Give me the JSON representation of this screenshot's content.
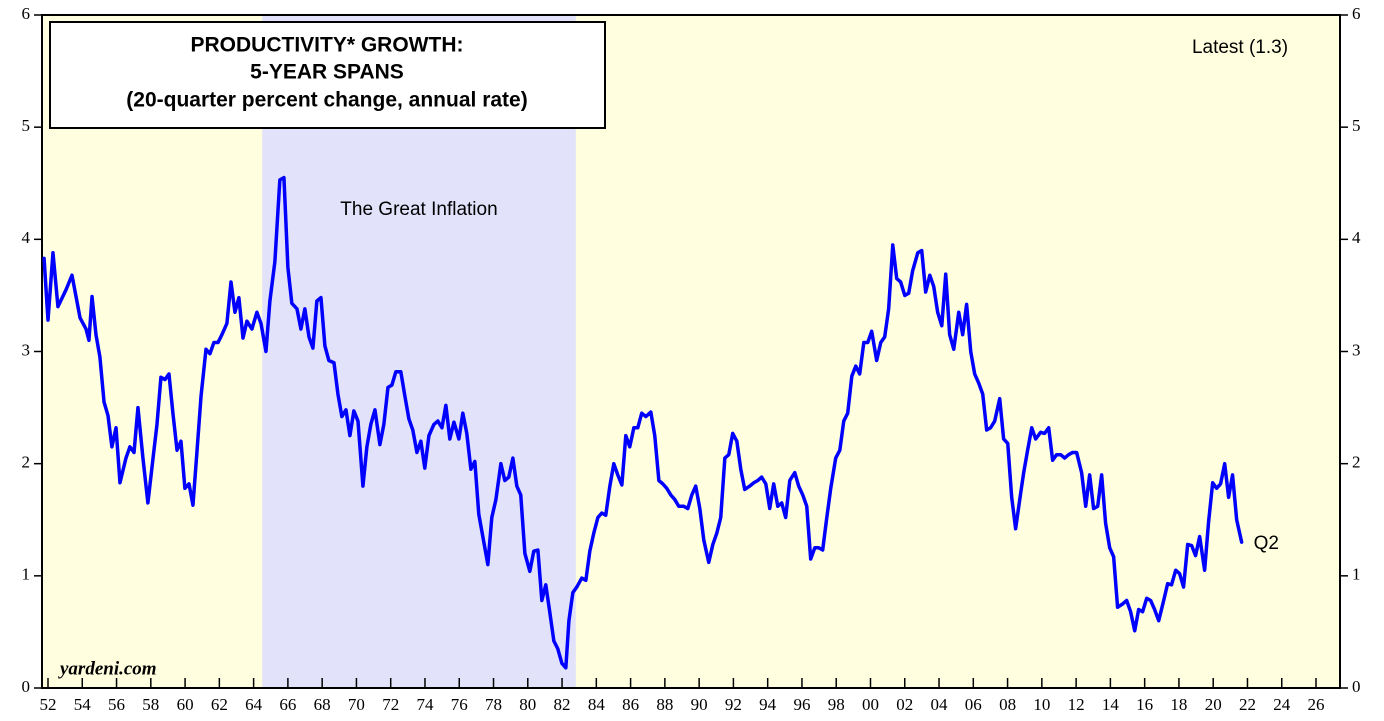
{
  "chart_data": {
    "type": "line",
    "title_lines": [
      "PRODUCTIVITY* GROWTH:",
      "5-YEAR SPANS",
      "(20-quarter percent change, annual rate)"
    ],
    "annotations": {
      "latest": "Latest (1.3)",
      "end_label": "Q2",
      "source": "yardeni.com"
    },
    "shaded_region": {
      "label": "The Great Inflation",
      "start": 1964.5,
      "end": 1982.8,
      "color": "#e2e2fa"
    },
    "background": "#ffffe0",
    "xlim": [
      1951.65,
      2027.4
    ],
    "ylim": [
      0,
      6
    ],
    "yticks": [
      0,
      1,
      2,
      3,
      4,
      5,
      6
    ],
    "xticks": [
      {
        "value": 1952,
        "label": "52"
      },
      {
        "value": 1954,
        "label": "54"
      },
      {
        "value": 1956,
        "label": "56"
      },
      {
        "value": 1958,
        "label": "58"
      },
      {
        "value": 1960,
        "label": "60"
      },
      {
        "value": 1962,
        "label": "62"
      },
      {
        "value": 1964,
        "label": "64"
      },
      {
        "value": 1966,
        "label": "66"
      },
      {
        "value": 1968,
        "label": "68"
      },
      {
        "value": 1970,
        "label": "70"
      },
      {
        "value": 1972,
        "label": "72"
      },
      {
        "value": 1974,
        "label": "74"
      },
      {
        "value": 1976,
        "label": "76"
      },
      {
        "value": 1978,
        "label": "78"
      },
      {
        "value": 1980,
        "label": "80"
      },
      {
        "value": 1982,
        "label": "82"
      },
      {
        "value": 1984,
        "label": "84"
      },
      {
        "value": 1986,
        "label": "86"
      },
      {
        "value": 1988,
        "label": "88"
      },
      {
        "value": 1990,
        "label": "90"
      },
      {
        "value": 1992,
        "label": "92"
      },
      {
        "value": 1994,
        "label": "94"
      },
      {
        "value": 1996,
        "label": "96"
      },
      {
        "value": 1998,
        "label": "98"
      },
      {
        "value": 2000,
        "label": "00"
      },
      {
        "value": 2002,
        "label": "02"
      },
      {
        "value": 2004,
        "label": "04"
      },
      {
        "value": 2006,
        "label": "06"
      },
      {
        "value": 2008,
        "label": "08"
      },
      {
        "value": 2010,
        "label": "10"
      },
      {
        "value": 2012,
        "label": "12"
      },
      {
        "value": 2014,
        "label": "14"
      },
      {
        "value": 2016,
        "label": "16"
      },
      {
        "value": 2018,
        "label": "18"
      },
      {
        "value": 2020,
        "label": "20"
      },
      {
        "value": 2022,
        "label": "22"
      },
      {
        "value": 2024,
        "label": "24"
      },
      {
        "value": 2026,
        "label": "26"
      }
    ],
    "x": [
      1951.77,
      1952.0,
      1952.29,
      1952.58,
      1953.05,
      1953.4,
      1953.87,
      1954.22,
      1954.39,
      1954.57,
      1954.8,
      1955.03,
      1955.27,
      1955.5,
      1955.73,
      1955.97,
      1956.2,
      1956.55,
      1956.78,
      1957.02,
      1957.25,
      1957.54,
      1957.83,
      1958.13,
      1958.36,
      1958.59,
      1958.83,
      1959.06,
      1959.29,
      1959.53,
      1959.76,
      1959.99,
      1960.23,
      1960.46,
      1960.69,
      1960.93,
      1961.22,
      1961.45,
      1961.68,
      1961.92,
      1962.15,
      1962.44,
      1962.68,
      1962.91,
      1963.14,
      1963.38,
      1963.61,
      1963.9,
      1964.19,
      1964.43,
      1964.72,
      1964.95,
      1965.24,
      1965.53,
      1965.77,
      1966.0,
      1966.23,
      1966.53,
      1966.76,
      1966.99,
      1967.23,
      1967.46,
      1967.69,
      1967.93,
      1968.16,
      1968.39,
      1968.69,
      1968.92,
      1969.15,
      1969.39,
      1969.62,
      1969.85,
      1970.09,
      1970.38,
      1970.61,
      1970.84,
      1971.08,
      1971.37,
      1971.6,
      1971.84,
      1972.07,
      1972.3,
      1972.59,
      1972.83,
      1973.06,
      1973.29,
      1973.53,
      1973.76,
      1973.99,
      1974.23,
      1974.52,
      1974.75,
      1974.99,
      1975.22,
      1975.45,
      1975.69,
      1975.98,
      1976.21,
      1976.44,
      1976.68,
      1976.91,
      1977.14,
      1977.67,
      1977.9,
      1978.14,
      1978.43,
      1978.66,
      1978.89,
      1979.13,
      1979.36,
      1979.59,
      1979.83,
      1980.12,
      1980.35,
      1980.59,
      1980.82,
      1981.05,
      1981.29,
      1981.52,
      1981.75,
      1981.99,
      1982.22,
      1982.4,
      1982.63,
      1982.86,
      1983.15,
      1983.39,
      1983.62,
      1983.85,
      1984.09,
      1984.32,
      1984.55,
      1984.79,
      1985.02,
      1985.25,
      1985.49,
      1985.72,
      1985.95,
      1986.19,
      1986.42,
      1986.65,
      1986.89,
      1987.18,
      1987.41,
      1987.65,
      1987.88,
      1988.11,
      1988.35,
      1988.58,
      1988.81,
      1989.1,
      1989.34,
      1989.57,
      1989.8,
      1990.04,
      1990.27,
      1990.56,
      1990.8,
      1991.03,
      1991.26,
      1991.5,
      1991.73,
      1991.96,
      1992.2,
      1992.43,
      1992.66,
      1992.95,
      1993.19,
      1993.42,
      1993.65,
      1993.89,
      1994.12,
      1994.35,
      1994.59,
      1994.82,
      1995.05,
      1995.29,
      1995.58,
      1995.81,
      1996.05,
      1996.28,
      1996.51,
      1996.75,
      1996.98,
      1997.21,
      1997.45,
      1997.68,
      1997.97,
      1998.21,
      1998.44,
      1998.67,
      1998.91,
      1999.14,
      1999.37,
      1999.61,
      1999.84,
      2000.07,
      2000.36,
      2000.6,
      2000.83,
      2001.06,
      2001.3,
      2001.53,
      2001.76,
      2002.0,
      2002.23,
      2002.46,
      2002.76,
      2002.99,
      2003.22,
      2003.46,
      2003.69,
      2003.92,
      2004.16,
      2004.39,
      2004.62,
      2004.86,
      2005.15,
      2005.38,
      2005.61,
      2005.85,
      2006.08,
      2006.31,
      2006.55,
      2006.78,
      2007.01,
      2007.25,
      2007.54,
      2007.77,
      2008.01,
      2008.24,
      2008.47,
      2008.71,
      2008.94,
      2009.17,
      2009.41,
      2009.64,
      2009.93,
      2010.16,
      2010.4,
      2010.63,
      2010.86,
      2011.1,
      2011.33,
      2011.56,
      2011.8,
      2012.03,
      2012.32,
      2012.56,
      2012.79,
      2013.02,
      2013.26,
      2013.49,
      2013.72,
      2013.96,
      2014.19,
      2014.42,
      2014.72,
      2014.95,
      2015.18,
      2015.42,
      2015.65,
      2015.88,
      2016.12,
      2016.35,
      2016.58,
      2016.82,
      2017.11,
      2017.34,
      2017.57,
      2017.81,
      2018.04,
      2018.27,
      2018.51,
      2018.74,
      2018.97,
      2019.21,
      2019.5,
      2019.73,
      2019.97,
      2020.2,
      2020.43,
      2020.67,
      2020.9,
      2021.13,
      2021.37,
      2021.66
    ],
    "series": [
      {
        "color": "#0000ff",
        "values": [
          3.83,
          3.28,
          3.88,
          3.4,
          3.55,
          3.68,
          3.3,
          3.2,
          3.1,
          3.49,
          3.15,
          2.95,
          2.55,
          2.43,
          2.15,
          2.32,
          1.83,
          2.05,
          2.15,
          2.1,
          2.5,
          2.05,
          1.65,
          2.05,
          2.35,
          2.77,
          2.75,
          2.8,
          2.45,
          2.12,
          2.2,
          1.78,
          1.82,
          1.63,
          2.1,
          2.6,
          3.02,
          2.98,
          3.08,
          3.08,
          3.15,
          3.25,
          3.62,
          3.35,
          3.48,
          3.12,
          3.27,
          3.2,
          3.35,
          3.25,
          3.0,
          3.45,
          3.8,
          4.53,
          4.55,
          3.75,
          3.43,
          3.38,
          3.2,
          3.38,
          3.13,
          3.03,
          3.45,
          3.48,
          3.05,
          2.92,
          2.9,
          2.62,
          2.42,
          2.48,
          2.25,
          2.47,
          2.38,
          1.8,
          2.15,
          2.35,
          2.48,
          2.17,
          2.35,
          2.68,
          2.7,
          2.82,
          2.82,
          2.6,
          2.4,
          2.3,
          2.1,
          2.2,
          1.96,
          2.25,
          2.35,
          2.38,
          2.32,
          2.52,
          2.22,
          2.37,
          2.22,
          2.45,
          2.27,
          1.95,
          2.02,
          1.55,
          1.1,
          1.52,
          1.68,
          2.0,
          1.85,
          1.88,
          2.05,
          1.8,
          1.72,
          1.2,
          1.04,
          1.22,
          1.23,
          0.78,
          0.92,
          0.67,
          0.42,
          0.35,
          0.22,
          0.18,
          0.6,
          0.85,
          0.9,
          0.98,
          0.96,
          1.22,
          1.38,
          1.52,
          1.56,
          1.54,
          1.8,
          2.0,
          1.9,
          1.81,
          2.25,
          2.15,
          2.32,
          2.32,
          2.45,
          2.42,
          2.46,
          2.25,
          1.85,
          1.82,
          1.78,
          1.72,
          1.68,
          1.62,
          1.62,
          1.6,
          1.72,
          1.8,
          1.6,
          1.32,
          1.12,
          1.28,
          1.38,
          1.52,
          2.05,
          2.08,
          2.27,
          2.2,
          1.95,
          1.77,
          1.8,
          1.83,
          1.85,
          1.88,
          1.82,
          1.6,
          1.82,
          1.62,
          1.65,
          1.52,
          1.85,
          1.92,
          1.8,
          1.72,
          1.62,
          1.15,
          1.25,
          1.25,
          1.23,
          1.52,
          1.78,
          2.05,
          2.12,
          2.38,
          2.45,
          2.78,
          2.87,
          2.8,
          3.08,
          3.08,
          3.18,
          2.92,
          3.08,
          3.13,
          3.38,
          3.95,
          3.65,
          3.62,
          3.5,
          3.52,
          3.72,
          3.88,
          3.9,
          3.53,
          3.68,
          3.58,
          3.35,
          3.23,
          3.69,
          3.15,
          3.02,
          3.35,
          3.15,
          3.42,
          3.0,
          2.8,
          2.72,
          2.62,
          2.3,
          2.32,
          2.38,
          2.58,
          2.22,
          2.18,
          1.7,
          1.42,
          1.68,
          1.92,
          2.12,
          2.32,
          2.22,
          2.28,
          2.27,
          2.32,
          2.03,
          2.08,
          2.08,
          2.05,
          2.08,
          2.1,
          2.1,
          1.92,
          1.62,
          1.9,
          1.6,
          1.62,
          1.9,
          1.47,
          1.25,
          1.17,
          0.72,
          0.75,
          0.78,
          0.68,
          0.51,
          0.7,
          0.68,
          0.8,
          0.78,
          0.7,
          0.6,
          0.78,
          0.93,
          0.92,
          1.05,
          1.02,
          0.9,
          1.28,
          1.27,
          1.18,
          1.35,
          1.05,
          1.48,
          1.83,
          1.78,
          1.82,
          2.0,
          1.7,
          1.9,
          1.5,
          1.3
        ]
      }
    ]
  }
}
